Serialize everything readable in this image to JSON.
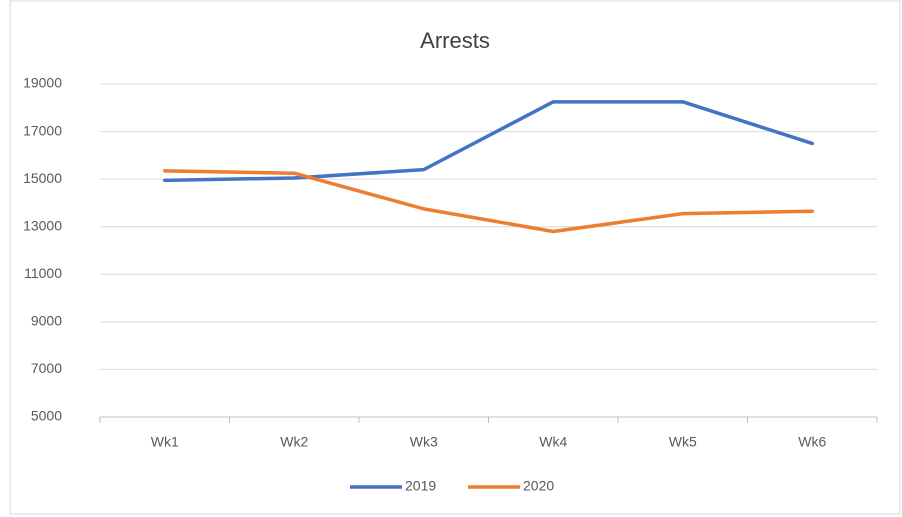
{
  "chart_data": {
    "type": "line",
    "title": "Arrests",
    "categories": [
      "Wk1",
      "Wk2",
      "Wk3",
      "Wk4",
      "Wk5",
      "Wk6"
    ],
    "series": [
      {
        "name": "2019",
        "color": "#4472c4",
        "values": [
          14950,
          15050,
          15400,
          18250,
          18250,
          16500
        ]
      },
      {
        "name": "2020",
        "color": "#ed7d31",
        "values": [
          15350,
          15250,
          13750,
          12800,
          13550,
          13650
        ]
      }
    ],
    "ylim": [
      5000,
      19000
    ],
    "yticks": [
      5000,
      7000,
      9000,
      11000,
      13000,
      15000,
      17000,
      19000
    ],
    "grid": true,
    "legend": "bottom"
  }
}
